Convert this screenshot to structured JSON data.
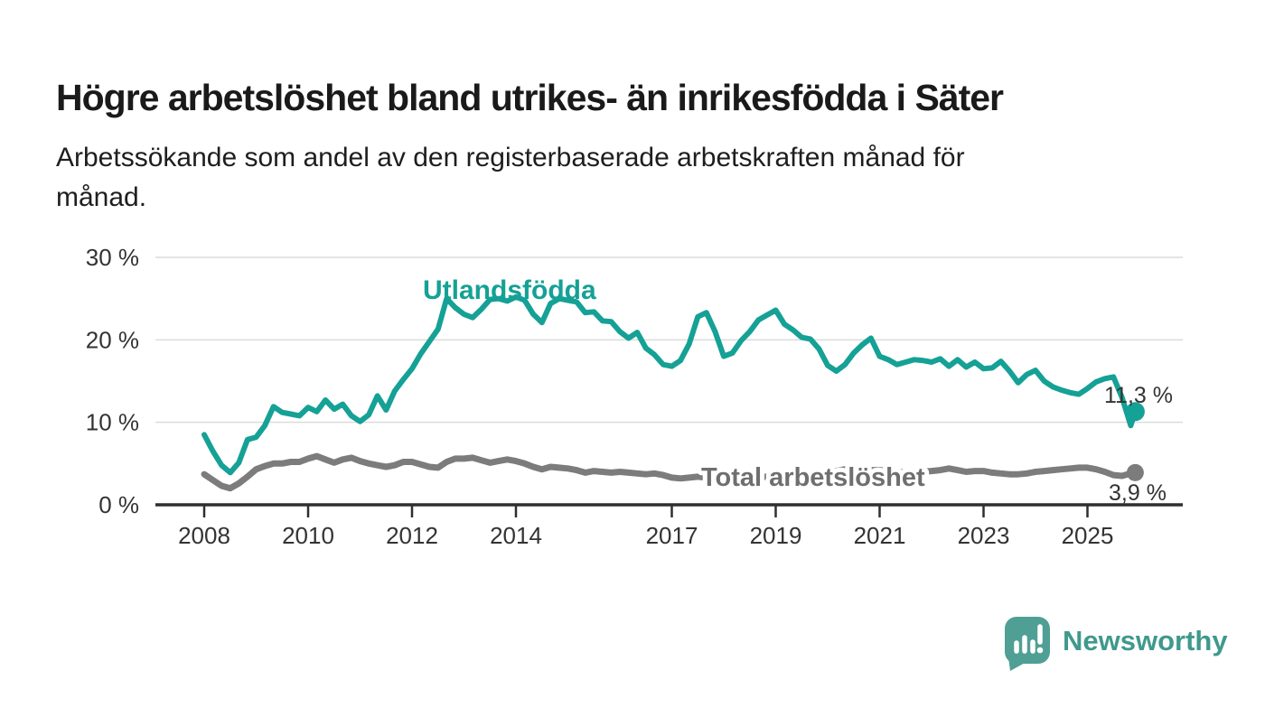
{
  "page": {
    "title": "Högre arbetslöshet bland utrikes- än inrikesfödda i Säter",
    "subtitle_line1": "Arbetssökande som andel av den registerbaserade arbetskraften månad för",
    "subtitle_line2": "månad.",
    "background_color": "#ffffff"
  },
  "branding": {
    "logo_text": "Newsworthy",
    "logo_icon": "map-pin-bar-chart",
    "badge_color": "#4f9f95",
    "text_color": "#3f998c"
  },
  "chart_data": {
    "type": "line",
    "title": "Högre arbetslöshet bland utrikes- än inrikesfödda i Säter",
    "subtitle": "Arbetssökande som andel av den registerbaserade arbetskraften månad för månad.",
    "grid": "horizontal",
    "legend": "inline-labels",
    "x_start_year": 2008.0,
    "x_step_years": 0.166667,
    "x_axis": {
      "ticks": [
        {
          "label": "2008",
          "year": 2008
        },
        {
          "label": "2010",
          "year": 2010
        },
        {
          "label": "2012",
          "year": 2012
        },
        {
          "label": "2014",
          "year": 2014
        },
        {
          "label": "2017",
          "year": 2017
        },
        {
          "label": "2019",
          "year": 2019
        },
        {
          "label": "2021",
          "year": 2021
        },
        {
          "label": "2023",
          "year": 2023
        },
        {
          "label": "2025",
          "year": 2025
        }
      ]
    },
    "y_axis": {
      "min": 0,
      "max": 30,
      "unit": "%",
      "ticks": [
        {
          "label": "0 %",
          "value": 0
        },
        {
          "label": "10 %",
          "value": 10
        },
        {
          "label": "20 %",
          "value": 20
        },
        {
          "label": "30 %",
          "value": 30
        }
      ]
    },
    "style": {
      "grid_color": "#dbdbdb",
      "axis_color": "#2f2f2f",
      "tick_label_color": "#333333",
      "annotation_color": "#333333"
    },
    "series": [
      {
        "name": "Utlandsfödda",
        "color": "#15a195",
        "label_color": "#15a195",
        "width": 6,
        "dot_radius": 10.5,
        "end_label": "11,3 %",
        "end_value": 11.3,
        "end_year": 2025.92,
        "values": [
          8.5,
          6.5,
          4.8,
          3.9,
          5.1,
          7.9,
          8.2,
          9.6,
          11.9,
          11.2,
          11.0,
          10.8,
          11.8,
          11.3,
          12.7,
          11.6,
          12.2,
          10.8,
          10.1,
          10.9,
          13.2,
          11.5,
          13.8,
          15.2,
          16.5,
          18.3,
          19.8,
          21.3,
          25.0,
          23.9,
          23.1,
          22.7,
          23.7,
          24.9,
          25.0,
          24.7,
          25.2,
          24.8,
          23.1,
          22.1,
          24.4,
          25.0,
          24.8,
          24.6,
          23.3,
          23.4,
          22.3,
          22.2,
          21.0,
          20.2,
          20.9,
          19.0,
          18.2,
          17.0,
          16.8,
          17.5,
          19.5,
          22.8,
          23.3,
          21.0,
          18.0,
          18.4,
          19.9,
          21.0,
          22.4,
          23.0,
          23.6,
          21.9,
          21.2,
          20.3,
          20.1,
          18.9,
          16.9,
          16.2,
          17.0,
          18.4,
          19.4,
          20.2,
          18.0,
          17.6,
          17.0,
          17.3,
          17.6,
          17.5,
          17.3,
          17.7,
          16.8,
          17.6,
          16.7,
          17.3,
          16.5,
          16.6,
          17.4,
          16.2,
          14.8,
          15.8,
          16.3,
          15.0,
          14.3,
          13.9,
          13.6,
          13.4,
          14.1,
          14.9,
          15.3,
          15.5,
          13.0,
          9.6,
          11.3
        ]
      },
      {
        "name": "Total arbetslöshet",
        "color": "#7c7c7c",
        "label_color": "#6f6f6f",
        "width": 7,
        "dot_radius": 9.5,
        "end_label": "3,9 %",
        "end_value": 3.9,
        "end_year": 2025.92,
        "values": [
          3.7,
          3.0,
          2.3,
          2.0,
          2.6,
          3.4,
          4.3,
          4.7,
          5.0,
          5.0,
          5.2,
          5.2,
          5.6,
          5.9,
          5.5,
          5.1,
          5.5,
          5.7,
          5.3,
          5.0,
          4.8,
          4.6,
          4.8,
          5.2,
          5.2,
          4.9,
          4.6,
          4.5,
          5.2,
          5.6,
          5.6,
          5.7,
          5.4,
          5.1,
          5.3,
          5.5,
          5.3,
          5.0,
          4.6,
          4.3,
          4.6,
          4.5,
          4.4,
          4.2,
          3.9,
          4.1,
          4.0,
          3.9,
          4.0,
          3.9,
          3.8,
          3.7,
          3.8,
          3.6,
          3.3,
          3.2,
          3.3,
          3.4,
          3.3,
          3.2,
          3.3,
          3.2,
          3.3,
          3.2,
          3.3,
          3.4,
          3.4,
          3.3,
          3.4,
          3.5,
          3.6,
          3.7,
          3.9,
          4.1,
          4.3,
          4.4,
          4.3,
          4.2,
          4.2,
          4.1,
          4.0,
          3.9,
          3.9,
          4.0,
          4.1,
          4.2,
          4.4,
          4.2,
          4.0,
          4.1,
          4.1,
          3.9,
          3.8,
          3.7,
          3.7,
          3.8,
          4.0,
          4.1,
          4.2,
          4.3,
          4.4,
          4.5,
          4.5,
          4.3,
          4.0,
          3.6,
          3.5,
          3.8,
          3.9
        ]
      }
    ]
  }
}
